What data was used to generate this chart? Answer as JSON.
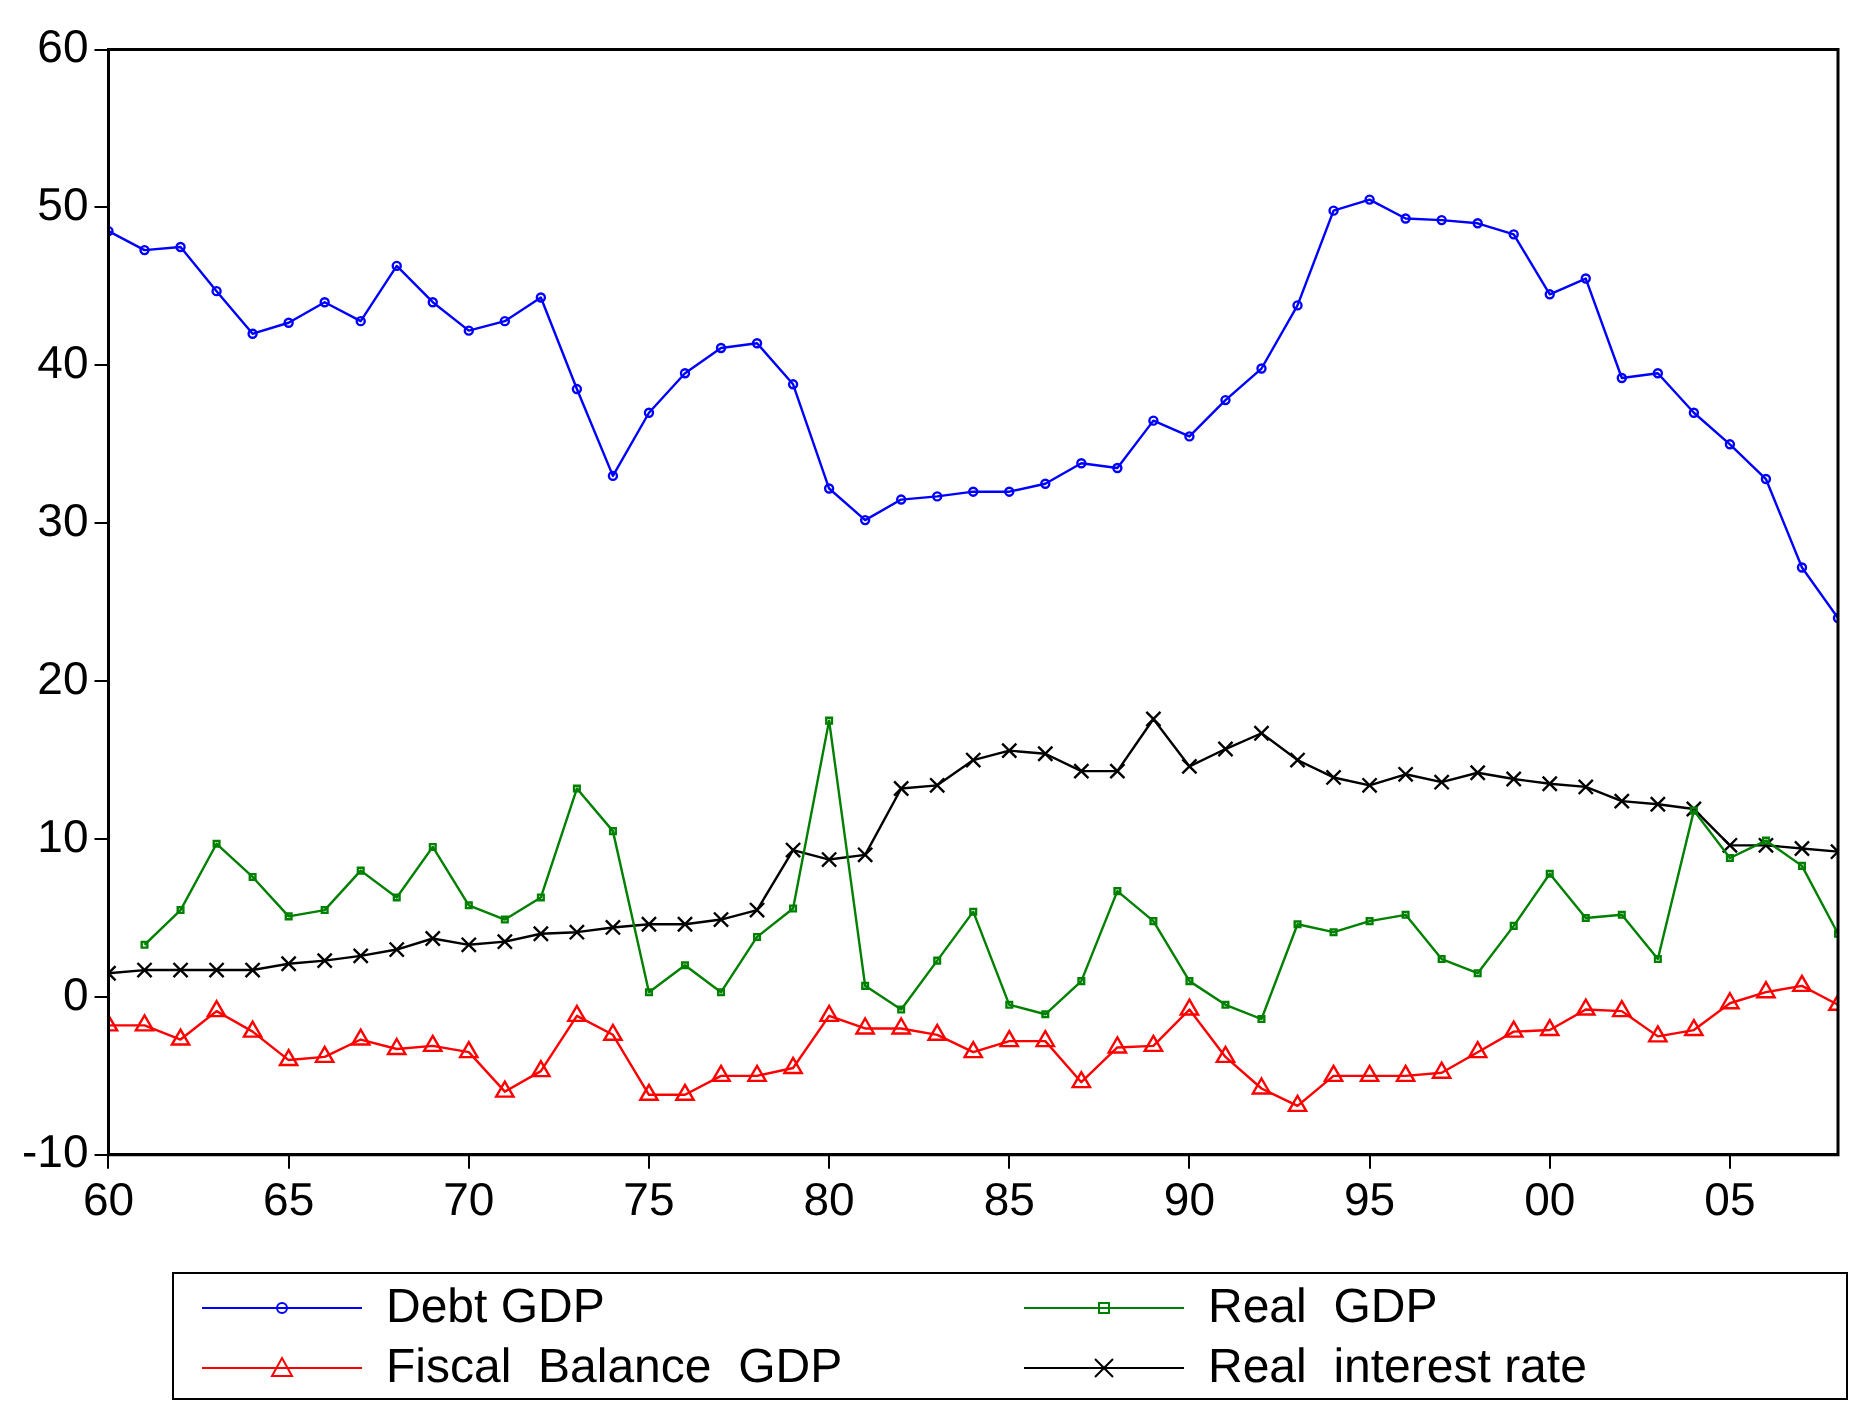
{
  "chart_data": {
    "type": "line",
    "x": [
      1960,
      1961,
      1962,
      1963,
      1964,
      1965,
      1966,
      1967,
      1968,
      1969,
      1970,
      1971,
      1972,
      1973,
      1974,
      1975,
      1976,
      1977,
      1978,
      1979,
      1980,
      1981,
      1982,
      1983,
      1984,
      1985,
      1986,
      1987,
      1988,
      1989,
      1990,
      1991,
      1992,
      1993,
      1994,
      1995,
      1996,
      1997,
      1998,
      1999,
      2000,
      2001,
      2002,
      2003,
      2004,
      2005,
      2006,
      2007,
      2008
    ],
    "xlim": [
      1960,
      2008
    ],
    "xticks": [
      {
        "value": 1960,
        "label": "60"
      },
      {
        "value": 1965,
        "label": "65"
      },
      {
        "value": 1970,
        "label": "70"
      },
      {
        "value": 1975,
        "label": "75"
      },
      {
        "value": 1980,
        "label": "80"
      },
      {
        "value": 1985,
        "label": "85"
      },
      {
        "value": 1990,
        "label": "90"
      },
      {
        "value": 1995,
        "label": "95"
      },
      {
        "value": 2000,
        "label": "00"
      },
      {
        "value": 2005,
        "label": "05"
      }
    ],
    "ylim": [
      -10,
      60
    ],
    "yticks": [
      -10,
      0,
      10,
      20,
      30,
      40,
      50,
      60
    ],
    "grid": false,
    "legend": "bottom",
    "line_style": "solid",
    "series": [
      {
        "name": "Debt GDP",
        "color": "#0000ff",
        "marker": "circle",
        "values": [
          48.5,
          47.3,
          47.5,
          44.7,
          42,
          42.7,
          44,
          42.8,
          46.3,
          44,
          42.2,
          42.8,
          44.3,
          38.5,
          33,
          37,
          39.5,
          41.1,
          41.4,
          38.8,
          32.2,
          30.2,
          31.5,
          31.7,
          32,
          32,
          32.5,
          33.8,
          33.5,
          36.5,
          35.5,
          37.8,
          39.8,
          43.8,
          49.8,
          50.5,
          49.3,
          49.2,
          49,
          48.3,
          44.5,
          45.5,
          39.2,
          39.5,
          37,
          35,
          32.8,
          27.2,
          24
        ]
      },
      {
        "name": "Real  GDP",
        "color": "#008000",
        "marker": "square",
        "values": [
          null,
          3.3,
          5.5,
          9.7,
          7.6,
          5.1,
          5.5,
          8,
          6.3,
          9.5,
          5.8,
          4.9,
          6.3,
          13.2,
          10.5,
          0.3,
          2,
          0.3,
          3.8,
          5.6,
          17.5,
          0.7,
          -0.8,
          2.3,
          5.4,
          -0.5,
          -1.1,
          1,
          6.7,
          4.8,
          1,
          -0.5,
          -1.4,
          4.6,
          4.1,
          4.8,
          5.2,
          2.4,
          1.5,
          4.5,
          7.8,
          5,
          5.2,
          2.4,
          11.8,
          8.8,
          9.9,
          8.3,
          4
        ]
      },
      {
        "name": "Fiscal  Balance  GDP",
        "color": "#ff0000",
        "marker": "triangle",
        "values": [
          -1.8,
          -1.8,
          -2.7,
          -0.9,
          -2.2,
          -4,
          -3.8,
          -2.7,
          -3.3,
          -3.1,
          -3.5,
          -6,
          -4.7,
          -1.2,
          -2.4,
          -6.2,
          -6.2,
          -5,
          -5,
          -4.5,
          -1.2,
          -2,
          -2,
          -2.4,
          -3.5,
          -2.8,
          -2.8,
          -5.4,
          -3.2,
          -3.1,
          -0.8,
          -3.8,
          -5.8,
          -6.9,
          -5,
          -5,
          -5,
          -4.8,
          -3.5,
          -2.2,
          -2.1,
          -0.8,
          -0.9,
          -2.5,
          -2.1,
          -0.4,
          0.3,
          0.7,
          -0.5
        ]
      },
      {
        "name": "Real  interest rate",
        "color": "#000000",
        "marker": "cross",
        "values": [
          1.5,
          1.7,
          1.7,
          1.7,
          1.7,
          2.1,
          2.3,
          2.6,
          3,
          3.7,
          3.3,
          3.5,
          4,
          4.1,
          4.4,
          4.6,
          4.6,
          4.9,
          5.5,
          9.3,
          8.7,
          9,
          13.2,
          13.4,
          15,
          15.6,
          15.4,
          14.3,
          14.3,
          17.6,
          14.6,
          15.7,
          16.7,
          15,
          13.9,
          13.4,
          14.1,
          13.6,
          14.2,
          13.8,
          13.5,
          13.3,
          12.4,
          12.2,
          11.9,
          9.6,
          9.6,
          9.4,
          9.2
        ]
      }
    ]
  }
}
